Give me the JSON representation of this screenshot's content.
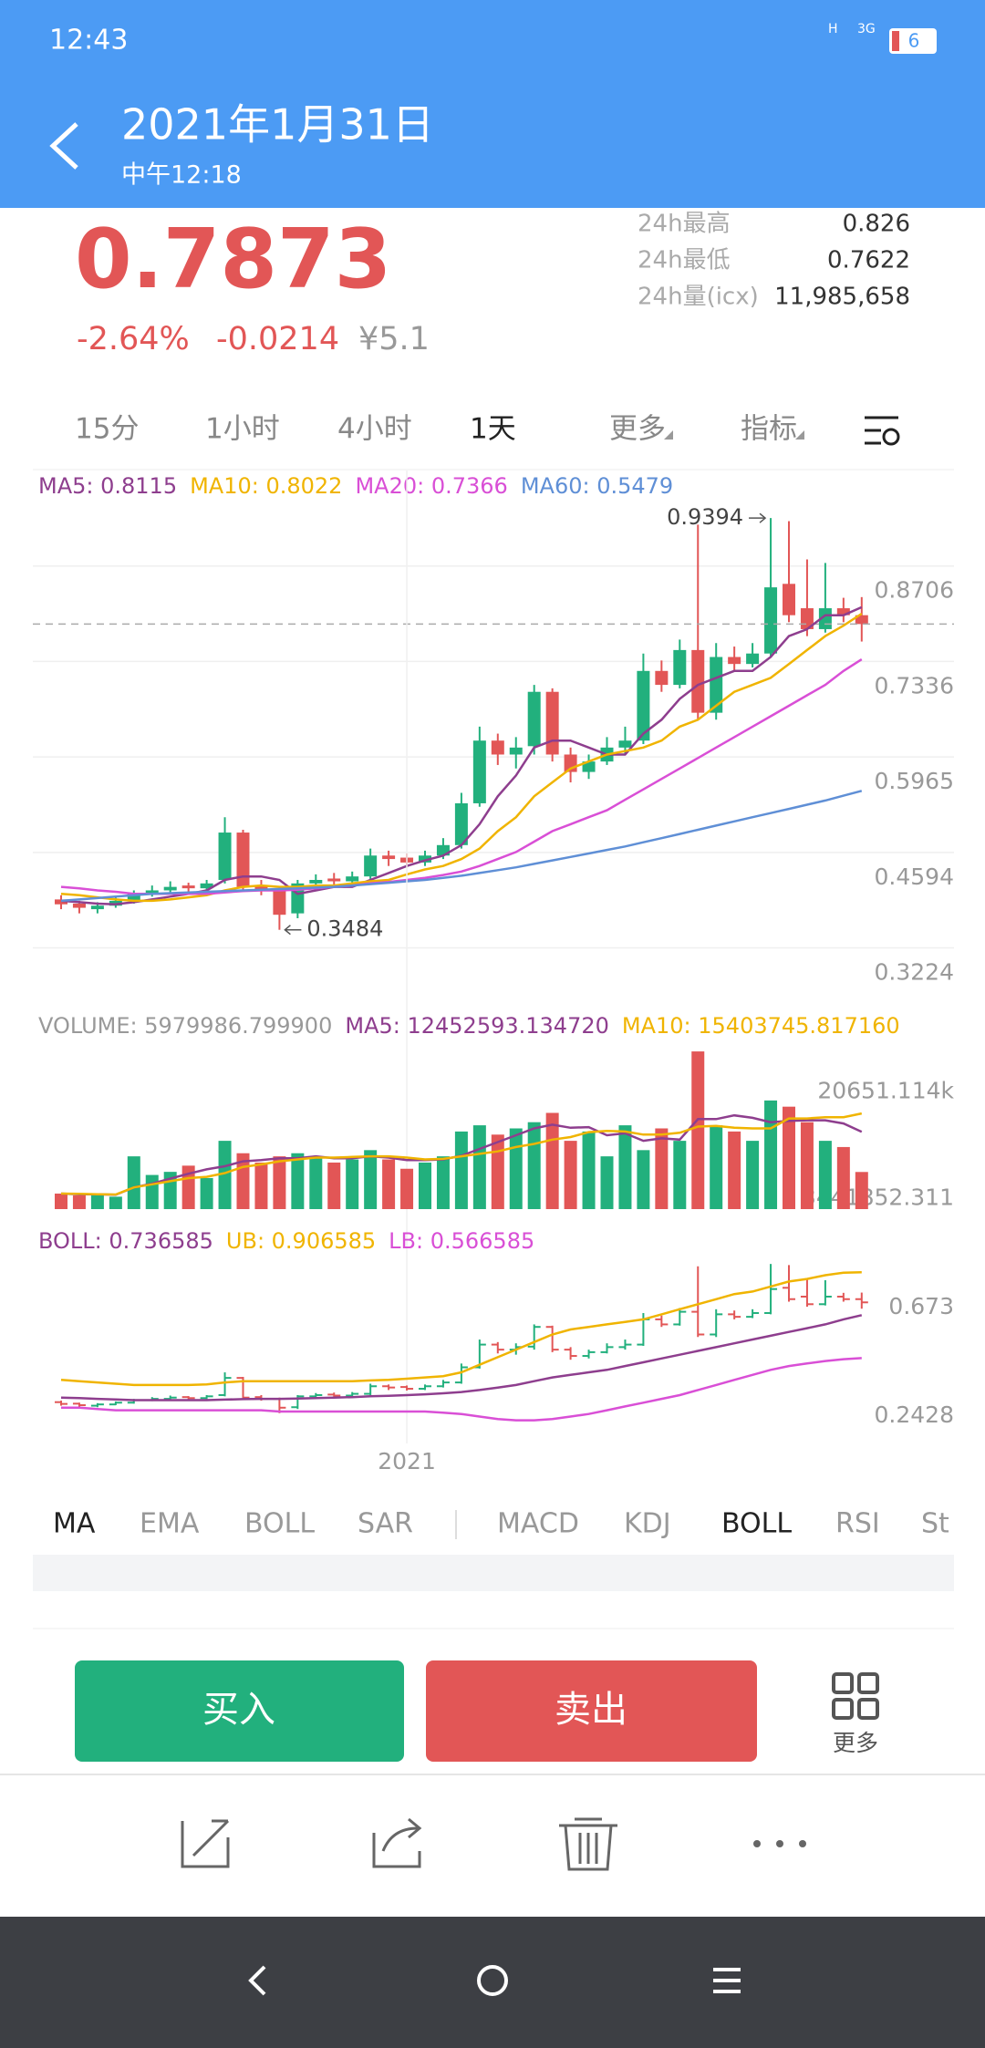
{
  "status_bar": {
    "time": "12:43",
    "network": "H",
    "network2": "3G",
    "battery": "6"
  },
  "header": {
    "title": "2021年1月31日",
    "subtitle": "中午12:18"
  },
  "quote": {
    "price": 0.7873,
    "change_pct": "-2.64%",
    "change": -0.0214,
    "cny": "¥5.1",
    "stats": [
      {
        "label": "24h最高",
        "value": 0.826
      },
      {
        "label": "24h最低",
        "value": 0.7622
      },
      {
        "label": "24h量(icx)",
        "value": "11,985,658"
      }
    ]
  },
  "period_tabs": [
    "15分",
    "1小时",
    "4小时",
    "1天",
    "更多",
    "指标"
  ],
  "chart_data": [
    {
      "type": "candlestick",
      "categories": [
        null,
        null,
        null,
        null,
        null,
        null,
        null,
        null,
        null,
        null,
        null,
        null,
        null,
        null,
        null,
        null,
        null,
        null,
        null,
        "2021",
        null,
        null,
        null,
        null,
        null,
        null,
        null,
        null,
        null,
        null,
        null,
        null,
        null,
        null,
        null,
        null,
        null,
        null,
        null,
        null,
        null,
        null,
        null,
        null,
        null
      ],
      "open": [
        0.392,
        0.386,
        0.378,
        0.383,
        0.39,
        0.4,
        0.405,
        0.412,
        0.408,
        0.42,
        0.488,
        0.412,
        0.405,
        0.372,
        0.415,
        0.422,
        0.418,
        0.425,
        0.455,
        0.452,
        0.445,
        0.455,
        0.47,
        0.53,
        0.62,
        0.6,
        0.612,
        0.69,
        0.6,
        0.575,
        0.59,
        0.61,
        0.62,
        0.72,
        0.7,
        0.75,
        0.66,
        0.74,
        0.73,
        0.745,
        0.845,
        0.81,
        0.78,
        0.81,
        0.8
      ],
      "high": [
        0.398,
        0.39,
        0.388,
        0.395,
        0.405,
        0.412,
        0.418,
        0.416,
        0.42,
        0.51,
        0.492,
        0.42,
        0.41,
        0.42,
        0.428,
        0.43,
        0.432,
        0.465,
        0.462,
        0.458,
        0.462,
        0.48,
        0.545,
        0.64,
        0.63,
        0.625,
        0.7,
        0.695,
        0.61,
        0.6,
        0.625,
        0.64,
        0.745,
        0.735,
        0.765,
        0.93,
        0.76,
        0.755,
        0.76,
        0.9394,
        0.935,
        0.88,
        0.875,
        0.825,
        0.826
      ],
      "low": [
        0.378,
        0.372,
        0.372,
        0.38,
        0.386,
        0.396,
        0.4,
        0.402,
        0.404,
        0.415,
        0.405,
        0.398,
        0.3484,
        0.365,
        0.41,
        0.412,
        0.414,
        0.42,
        0.44,
        0.438,
        0.44,
        0.45,
        0.465,
        0.525,
        0.585,
        0.58,
        0.6,
        0.59,
        0.56,
        0.565,
        0.585,
        0.6,
        0.615,
        0.69,
        0.695,
        0.65,
        0.65,
        0.72,
        0.725,
        0.74,
        0.79,
        0.77,
        0.775,
        0.79,
        0.7622
      ],
      "close": [
        0.385,
        0.38,
        0.383,
        0.39,
        0.4,
        0.405,
        0.41,
        0.408,
        0.415,
        0.488,
        0.41,
        0.405,
        0.37,
        0.415,
        0.42,
        0.418,
        0.425,
        0.455,
        0.45,
        0.445,
        0.455,
        0.47,
        0.53,
        0.62,
        0.6,
        0.61,
        0.69,
        0.6,
        0.575,
        0.59,
        0.61,
        0.62,
        0.72,
        0.7,
        0.75,
        0.66,
        0.74,
        0.73,
        0.745,
        0.84,
        0.8,
        0.78,
        0.81,
        0.8,
        0.7873
      ],
      "up_color": "#22b07d",
      "down_color": "#e25656",
      "ylim": [
        0.2302,
        1.0077
      ],
      "yticks": [
        0.8706,
        0.7336,
        0.5965,
        0.4594,
        0.3224
      ],
      "grid": true,
      "lines": [
        {
          "legend": "MA5: 0.8115",
          "color": "#8e3e8e",
          "values": [
            0.39,
            0.388,
            0.386,
            0.385,
            0.388,
            0.392,
            0.396,
            0.4,
            0.405,
            0.42,
            0.425,
            0.425,
            0.42,
            0.4,
            0.405,
            0.41,
            0.41,
            0.42,
            0.43,
            0.44,
            0.448,
            0.455,
            0.47,
            0.5,
            0.54,
            0.57,
            0.61,
            0.62,
            0.62,
            0.61,
            0.6,
            0.6,
            0.63,
            0.65,
            0.68,
            0.7,
            0.71,
            0.72,
            0.72,
            0.74,
            0.77,
            0.78,
            0.8,
            0.8,
            0.8115
          ]
        },
        {
          "legend": "MA10: 0.8022",
          "color": "#f0b400",
          "values": [
            0.4,
            0.398,
            0.395,
            0.392,
            0.39,
            0.39,
            0.392,
            0.395,
            0.398,
            0.405,
            0.41,
            0.412,
            0.41,
            0.41,
            0.412,
            0.412,
            0.415,
            0.418,
            0.42,
            0.428,
            0.435,
            0.44,
            0.45,
            0.465,
            0.49,
            0.51,
            0.54,
            0.56,
            0.58,
            0.59,
            0.6,
            0.605,
            0.61,
            0.62,
            0.64,
            0.65,
            0.67,
            0.69,
            0.7,
            0.71,
            0.73,
            0.75,
            0.77,
            0.785,
            0.8022
          ]
        },
        {
          "legend": "MA20: 0.7366",
          "color": "#d94fd6",
          "values": [
            0.41,
            0.408,
            0.405,
            0.403,
            0.4,
            0.4,
            0.4,
            0.4,
            0.4,
            0.402,
            0.404,
            0.405,
            0.405,
            0.406,
            0.408,
            0.41,
            0.412,
            0.415,
            0.417,
            0.42,
            0.423,
            0.427,
            0.432,
            0.44,
            0.45,
            0.46,
            0.475,
            0.49,
            0.5,
            0.51,
            0.52,
            0.535,
            0.55,
            0.565,
            0.58,
            0.595,
            0.61,
            0.625,
            0.64,
            0.655,
            0.67,
            0.685,
            0.7,
            0.72,
            0.7366
          ]
        },
        {
          "legend": "MA60: 0.5479",
          "color": "#5f8fd6",
          "values": [
            0.39,
            0.392,
            0.394,
            0.396,
            0.398,
            0.4,
            0.401,
            0.402,
            0.403,
            0.404,
            0.405,
            0.406,
            0.407,
            0.408,
            0.409,
            0.41,
            0.412,
            0.414,
            0.416,
            0.418,
            0.42,
            0.423,
            0.426,
            0.43,
            0.434,
            0.438,
            0.443,
            0.448,
            0.453,
            0.458,
            0.463,
            0.468,
            0.474,
            0.48,
            0.486,
            0.492,
            0.498,
            0.504,
            0.51,
            0.516,
            0.522,
            0.528,
            0.534,
            0.541,
            0.5479
          ]
        }
      ],
      "max_label": 0.9394,
      "min_label": 0.3484
    },
    {
      "type": "bar",
      "legend": "VOLUME: 5979986.799900",
      "legend_color": "#999999",
      "values": [
        2500000,
        2200000,
        2400000,
        2000000,
        8500000,
        5500000,
        6000000,
        7000000,
        5000000,
        11000000,
        9000000,
        7500000,
        8500000,
        9000000,
        8500000,
        7500000,
        8000000,
        9500000,
        8000000,
        6500000,
        7500000,
        8500000,
        12500000,
        13500000,
        12000000,
        13000000,
        14000000,
        15500000,
        11000000,
        12500000,
        8500000,
        13500000,
        9500000,
        13000000,
        11000000,
        25400000,
        13500000,
        12500000,
        11000000,
        17500000,
        16500000,
        14000000,
        11000000,
        10000000,
        5979986.7999
      ],
      "ylim": [
        0,
        26440000
      ],
      "yticks": [
        {
          "value": 20651114,
          "label": "20651.114k"
        },
        3441852.311
      ],
      "lines": [
        {
          "legend": "MA5: 12452593.134720",
          "color": "#8e3e8e",
          "values": [
            2500000,
            2400000,
            2400000,
            2300000,
            3500000,
            4100000,
            4900000,
            5700000,
            6400000,
            6900000,
            7700000,
            7900000,
            8200000,
            8200000,
            8500000,
            8200000,
            8200000,
            8500000,
            8300000,
            7900000,
            7900000,
            8000000,
            8600000,
            9700000,
            10800000,
            11900000,
            13000000,
            13600000,
            13100000,
            13200000,
            11900000,
            12200000,
            11000000,
            11400000,
            11200000,
            14500000,
            14500000,
            15100000,
            14700000,
            14000000,
            14200000,
            14300000,
            14300000,
            13800000,
            12452593.13472
          ]
        },
        {
          "legend": "MA10: 15403745.817160",
          "color": "#f0b400",
          "values": [
            2500000,
            2450000,
            2400000,
            2350000,
            3500000,
            4000000,
            4500000,
            5000000,
            5200000,
            5800000,
            6800000,
            7200000,
            7700000,
            8000000,
            8300000,
            8300000,
            8400000,
            8500000,
            8500000,
            8300000,
            8000000,
            8100000,
            8500000,
            8900000,
            9300000,
            10000000,
            10500000,
            11200000,
            11600000,
            12400000,
            12600000,
            12500000,
            12000000,
            12000000,
            12300000,
            13300000,
            13400000,
            13100000,
            13000000,
            13000000,
            14600000,
            14600000,
            14800000,
            14800000,
            15403745.81716
          ]
        }
      ]
    },
    {
      "type": "boll",
      "ylim": [
        0.2284,
        1.005
      ],
      "yticks": [
        0.673,
        0.2428
      ],
      "lines": [
        {
          "legend": "BOLL: 0.736585",
          "color": "#8e3e8e",
          "values": [
            0.41,
            0.408,
            0.405,
            0.403,
            0.4,
            0.4,
            0.4,
            0.4,
            0.4,
            0.402,
            0.404,
            0.405,
            0.405,
            0.406,
            0.408,
            0.41,
            0.412,
            0.415,
            0.417,
            0.42,
            0.423,
            0.427,
            0.432,
            0.44,
            0.45,
            0.46,
            0.475,
            0.49,
            0.5,
            0.51,
            0.52,
            0.535,
            0.55,
            0.565,
            0.58,
            0.595,
            0.61,
            0.625,
            0.64,
            0.655,
            0.67,
            0.685,
            0.7,
            0.72,
            0.736585
          ]
        },
        {
          "legend": "UB: 0.906585",
          "color": "#f0b400",
          "values": [
            0.48,
            0.475,
            0.47,
            0.465,
            0.46,
            0.46,
            0.46,
            0.46,
            0.462,
            0.47,
            0.475,
            0.475,
            0.475,
            0.475,
            0.475,
            0.475,
            0.475,
            0.478,
            0.48,
            0.485,
            0.49,
            0.495,
            0.51,
            0.54,
            0.57,
            0.6,
            0.63,
            0.66,
            0.68,
            0.69,
            0.7,
            0.71,
            0.72,
            0.74,
            0.76,
            0.78,
            0.8,
            0.82,
            0.83,
            0.85,
            0.87,
            0.88,
            0.895,
            0.905,
            0.906585
          ]
        },
        {
          "legend": "LB: 0.566585",
          "color": "#d94fd6",
          "values": [
            0.37,
            0.37,
            0.365,
            0.36,
            0.36,
            0.36,
            0.36,
            0.36,
            0.36,
            0.36,
            0.36,
            0.36,
            0.355,
            0.355,
            0.355,
            0.355,
            0.355,
            0.355,
            0.355,
            0.355,
            0.355,
            0.35,
            0.345,
            0.335,
            0.325,
            0.32,
            0.32,
            0.325,
            0.335,
            0.345,
            0.36,
            0.375,
            0.39,
            0.405,
            0.42,
            0.44,
            0.46,
            0.48,
            0.5,
            0.52,
            0.535,
            0.545,
            0.555,
            0.562,
            0.566585
          ]
        }
      ]
    }
  ],
  "indicator_tabs": {
    "main": [
      "MA",
      "EMA",
      "BOLL",
      "SAR"
    ],
    "sub": [
      "MACD",
      "KDJ",
      "BOLL",
      "RSI",
      "St"
    ]
  },
  "actions": {
    "buy": "买入",
    "sell": "卖出",
    "more": "更多"
  }
}
